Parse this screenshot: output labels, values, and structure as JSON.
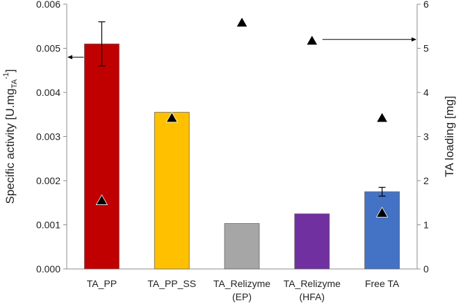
{
  "chart_data": {
    "type": "bar",
    "categories": [
      {
        "line1": "TA_PP",
        "line2": ""
      },
      {
        "line1": "TA_PP_SS",
        "line2": ""
      },
      {
        "line1": "TA_Relizyme",
        "line2": "(EP)"
      },
      {
        "line1": "TA_Relizyme",
        "line2": "(HFA)"
      },
      {
        "line1": "Free TA",
        "line2": ""
      }
    ],
    "bars": {
      "name": "Specific activity",
      "values": [
        0.0051,
        0.00355,
        0.00103,
        0.00125,
        0.00175
      ],
      "errors": [
        0.0005,
        null,
        null,
        null,
        0.0001
      ],
      "colors": [
        "#C00000",
        "#FFC000",
        "#A6A6A6",
        "#7030A0",
        "#4472C4"
      ]
    },
    "markers": {
      "name": "TA loading",
      "values": [
        1.55,
        3.42,
        5.58,
        5.17,
        3.42
      ],
      "extra_values": [
        null,
        null,
        null,
        null,
        1.27
      ],
      "color": "#000000"
    },
    "y_left": {
      "label_main": "Specific activity [U.mg",
      "label_sub": "TA",
      "label_sup": "-1",
      "label_end": "]",
      "min": 0,
      "max": 0.006,
      "ticks": [
        "0.000",
        "0.001",
        "0.002",
        "0.003",
        "0.004",
        "0.005",
        "0.006"
      ]
    },
    "y_right": {
      "label": "TA loading [mg]",
      "min": 0,
      "max": 6,
      "ticks": [
        "0",
        "1",
        "2",
        "3",
        "4",
        "5",
        "6"
      ]
    },
    "annotations": [
      {
        "type": "arrow",
        "points_to": "left-axis",
        "at_value": 0.0048
      },
      {
        "type": "arrow",
        "points_to": "right-axis",
        "at_value": 5.2
      }
    ],
    "grid": false
  }
}
